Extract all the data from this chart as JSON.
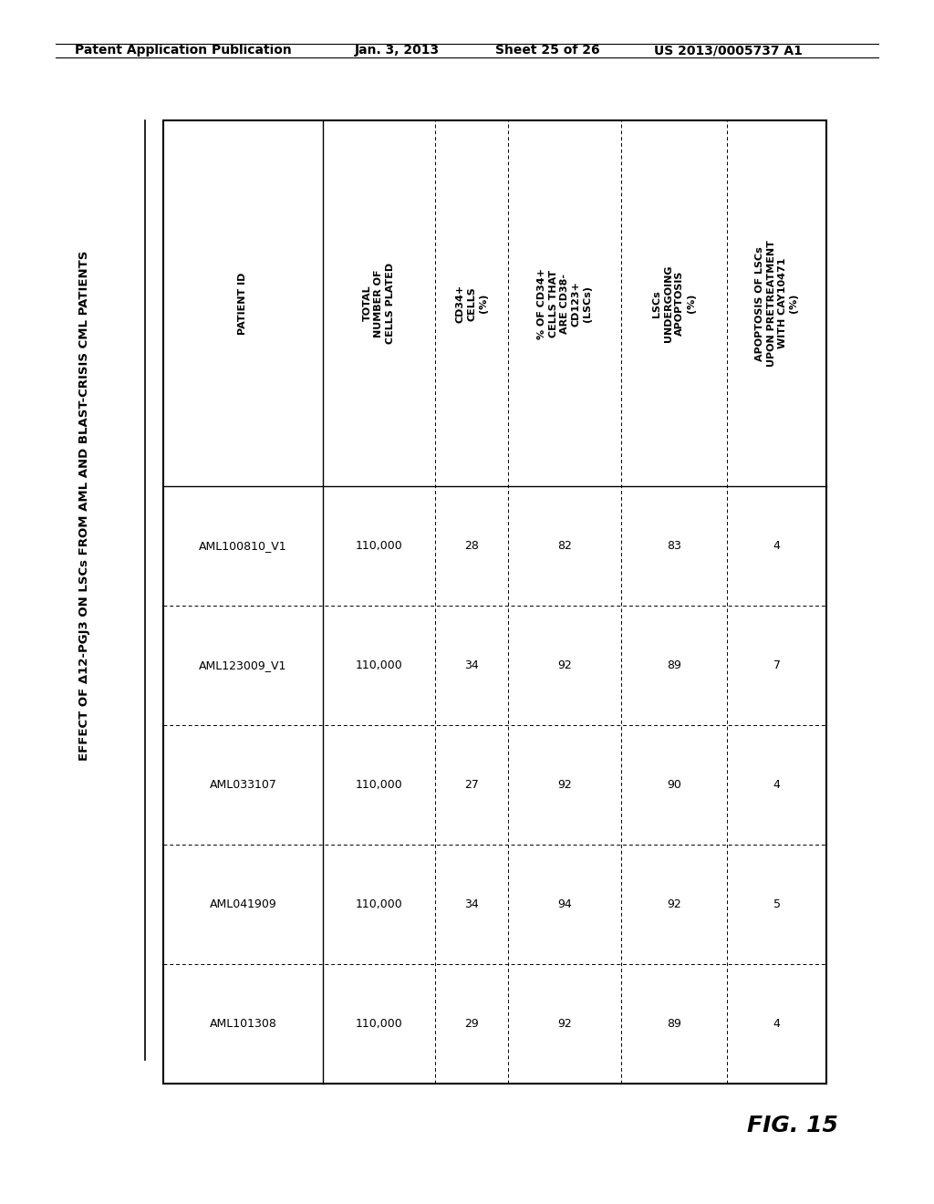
{
  "header_line1": "Patent Application Publication",
  "header_line2": "Jan. 3, 2013",
  "header_line3": "Sheet 25 of 26",
  "header_line4": "US 2013/0005737 A1",
  "title": "EFFECT OF Δ12-PGJ3 ON LSCs FROM AML AND BLAST-CRISIS CML PATIENTS",
  "fig_label": "FIG. 15",
  "columns": [
    "PATIENT ID",
    "TOTAL\nNUMBER OF\nCELLS PLATED",
    "CD34+\nCELLS\n(%)",
    "% OF CD34+\nCELLS THAT\nARE CD38-\nCD123+\n(LSCs)",
    "LSCs\nUNDERGOING\nAPOPTOSIS\n(%)",
    "APOPTOSIS OF LSCs\nUPON PRETREATMENT\nWITH CAY10471\n(%)"
  ],
  "rows": [
    [
      "AML100810_V1",
      "110,000",
      "28",
      "82",
      "83",
      "4"
    ],
    [
      "AML123009_V1",
      "110,000",
      "34",
      "92",
      "89",
      "7"
    ],
    [
      "AML033107",
      "110,000",
      "27",
      "92",
      "90",
      "4"
    ],
    [
      "AML041909",
      "110,000",
      "34",
      "94",
      "92",
      "5"
    ],
    [
      "AML101308",
      "110,000",
      "29",
      "92",
      "89",
      "4"
    ]
  ],
  "bg_color": "#ffffff",
  "text_color": "#000000",
  "header_fontsize": 10,
  "title_fontsize": 9.5,
  "col_header_fontsize": 8,
  "data_fontsize": 9,
  "fig_label_fontsize": 18
}
